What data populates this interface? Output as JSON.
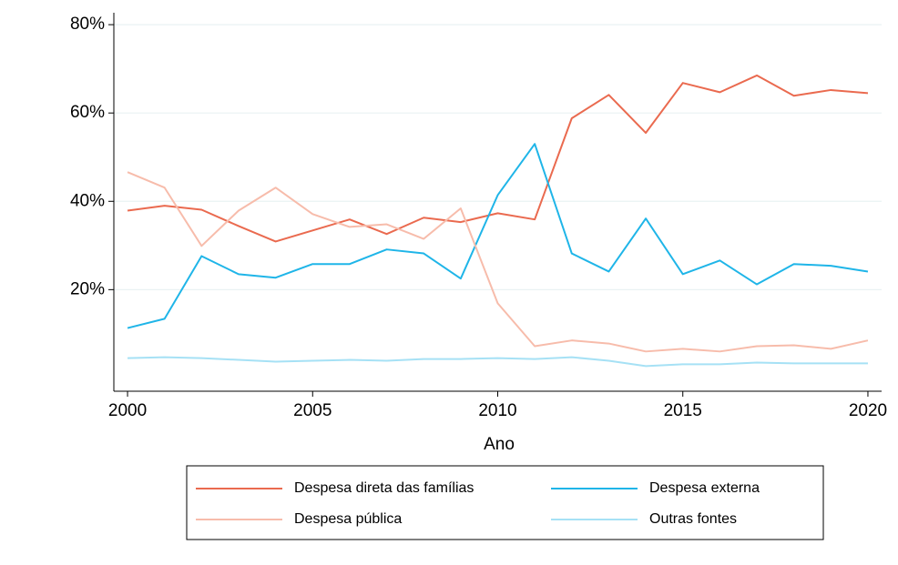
{
  "chart_data": {
    "type": "line",
    "x_label": "Ano",
    "x": [
      2000,
      2001,
      2002,
      2003,
      2004,
      2005,
      2006,
      2007,
      2008,
      2009,
      2010,
      2011,
      2012,
      2013,
      2014,
      2015,
      2016,
      2017,
      2018,
      2019,
      2020
    ],
    "series": [
      {
        "name": "Despesa direta das famílias",
        "color": "#ea6a4f",
        "values": [
          37.9,
          39,
          38.1,
          34.4,
          30.9,
          33.4,
          35.9,
          32.6,
          36.3,
          35.3,
          37.3,
          35.9,
          58.8,
          64.1,
          55.5,
          66.8,
          64.7,
          68.5,
          63.9,
          65.2,
          64.5
        ]
      },
      {
        "name": "Despesa externa",
        "color": "#1fb5e8",
        "values": [
          11.3,
          13.4,
          27.6,
          23.5,
          22.7,
          25.8,
          25.8,
          29.1,
          28.2,
          22.5,
          41.4,
          53,
          28.2,
          24.1,
          36.1,
          23.5,
          26.6,
          21.2,
          25.8,
          25.4,
          24.1
        ]
      },
      {
        "name": "Despesa pública",
        "color": "#f7bcab",
        "values": [
          46.6,
          43.1,
          29.9,
          37.9,
          43.1,
          37.1,
          34.2,
          34.8,
          31.5,
          38.4,
          16.9,
          7.2,
          8.5,
          7.8,
          6.0,
          6.6,
          6.0,
          7.2,
          7.4,
          6.6,
          8.5
        ]
      },
      {
        "name": "Outras fontes",
        "color": "#a6e1f5",
        "values": [
          4.5,
          4.7,
          4.5,
          4.1,
          3.7,
          3.9,
          4.1,
          3.9,
          4.3,
          4.3,
          4.5,
          4.3,
          4.7,
          3.9,
          2.7,
          3.1,
          3.1,
          3.5,
          3.3,
          3.3,
          3.3
        ]
      }
    ],
    "xlim": [
      1999.63,
      2020.37
    ],
    "xticks": [
      2000,
      2005,
      2010,
      2015,
      2020
    ],
    "ylim": [
      -3,
      82.7
    ],
    "yticks": [
      {
        "value": 20,
        "label": "20%"
      },
      {
        "value": 40,
        "label": "40%"
      },
      {
        "value": 60,
        "label": "60%"
      },
      {
        "value": 80,
        "label": "80%"
      }
    ],
    "grid": true,
    "legend": "bottom"
  }
}
